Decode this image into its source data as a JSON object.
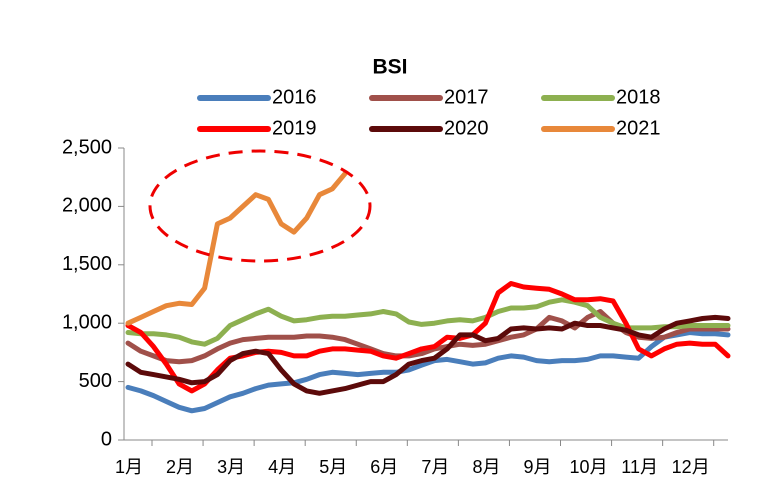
{
  "chart_data": {
    "type": "line",
    "title": "BSI",
    "categories": [
      "1月",
      null,
      null,
      null,
      "2月",
      null,
      null,
      null,
      "3月",
      null,
      null,
      null,
      "4月",
      null,
      null,
      null,
      "5月",
      null,
      null,
      null,
      "6月",
      null,
      null,
      null,
      "7月",
      null,
      null,
      null,
      "8月",
      null,
      null,
      null,
      "9月",
      null,
      null,
      null,
      "10月",
      null,
      null,
      null,
      "11月",
      null,
      null,
      null,
      "12月",
      null,
      null,
      null
    ],
    "series": [
      {
        "name": "2016",
        "color": "#4a7ebb",
        "values": [
          450,
          420,
          380,
          330,
          280,
          250,
          270,
          320,
          370,
          400,
          440,
          470,
          480,
          490,
          520,
          560,
          580,
          570,
          560,
          570,
          580,
          580,
          600,
          640,
          680,
          690,
          670,
          650,
          660,
          700,
          720,
          710,
          680,
          670,
          680,
          680,
          690,
          720,
          720,
          710,
          700,
          800,
          880,
          900,
          920,
          910,
          910,
          900
        ]
      },
      {
        "name": "2017",
        "color": "#a0504a",
        "values": [
          830,
          760,
          720,
          680,
          670,
          680,
          720,
          780,
          830,
          860,
          870,
          880,
          880,
          880,
          890,
          890,
          880,
          860,
          820,
          780,
          740,
          720,
          720,
          740,
          780,
          800,
          820,
          810,
          820,
          850,
          880,
          900,
          950,
          1050,
          1020,
          960,
          1050,
          1100,
          1000,
          920,
          880,
          870,
          880,
          920,
          950,
          950,
          950,
          950
        ]
      },
      {
        "name": "2018",
        "color": "#8db050",
        "values": [
          920,
          910,
          910,
          900,
          880,
          840,
          820,
          870,
          980,
          1030,
          1080,
          1120,
          1060,
          1020,
          1030,
          1050,
          1060,
          1060,
          1070,
          1080,
          1100,
          1080,
          1010,
          990,
          1000,
          1020,
          1030,
          1020,
          1050,
          1100,
          1130,
          1130,
          1140,
          1180,
          1200,
          1180,
          1150,
          1050,
          1000,
          960,
          960,
          960,
          970,
          970,
          980,
          980,
          980,
          980
        ]
      },
      {
        "name": "2019",
        "color": "#ff0000",
        "values": [
          980,
          920,
          800,
          650,
          480,
          420,
          480,
          600,
          700,
          720,
          750,
          760,
          750,
          720,
          720,
          760,
          780,
          780,
          770,
          760,
          720,
          700,
          740,
          780,
          800,
          880,
          870,
          900,
          1000,
          1260,
          1340,
          1310,
          1300,
          1290,
          1250,
          1200,
          1200,
          1210,
          1190,
          1000,
          780,
          720,
          780,
          820,
          830,
          820,
          820,
          720
        ]
      },
      {
        "name": "2020",
        "color": "#5c0a0a",
        "values": [
          650,
          580,
          560,
          540,
          520,
          490,
          500,
          560,
          680,
          740,
          760,
          740,
          600,
          480,
          420,
          400,
          420,
          440,
          470,
          500,
          500,
          560,
          650,
          680,
          700,
          780,
          900,
          900,
          850,
          870,
          950,
          960,
          950,
          960,
          950,
          1000,
          980,
          980,
          960,
          940,
          900,
          880,
          950,
          1000,
          1020,
          1040,
          1050,
          1040
        ]
      },
      {
        "name": "2021",
        "color": "#e8883a",
        "values": [
          1000,
          1050,
          1100,
          1150,
          1170,
          1160,
          1300,
          1850,
          1900,
          2000,
          2100,
          2060,
          1850,
          1780,
          1900,
          2100,
          2150,
          2280,
          null,
          null,
          null,
          null,
          null,
          null,
          null,
          null,
          null,
          null,
          null,
          null,
          null,
          null,
          null,
          null,
          null,
          null,
          null,
          null,
          null,
          null,
          null,
          null,
          null,
          null,
          null,
          null,
          null,
          null
        ]
      }
    ],
    "ylim": [
      0,
      2500
    ],
    "yticks": [
      0,
      500,
      {
        "value": 1000,
        "label": "1,000"
      },
      {
        "value": 1500,
        "label": "1,500"
      },
      {
        "value": 2000,
        "label": "2,000"
      },
      {
        "value": 2500,
        "label": "2,500"
      }
    ]
  }
}
